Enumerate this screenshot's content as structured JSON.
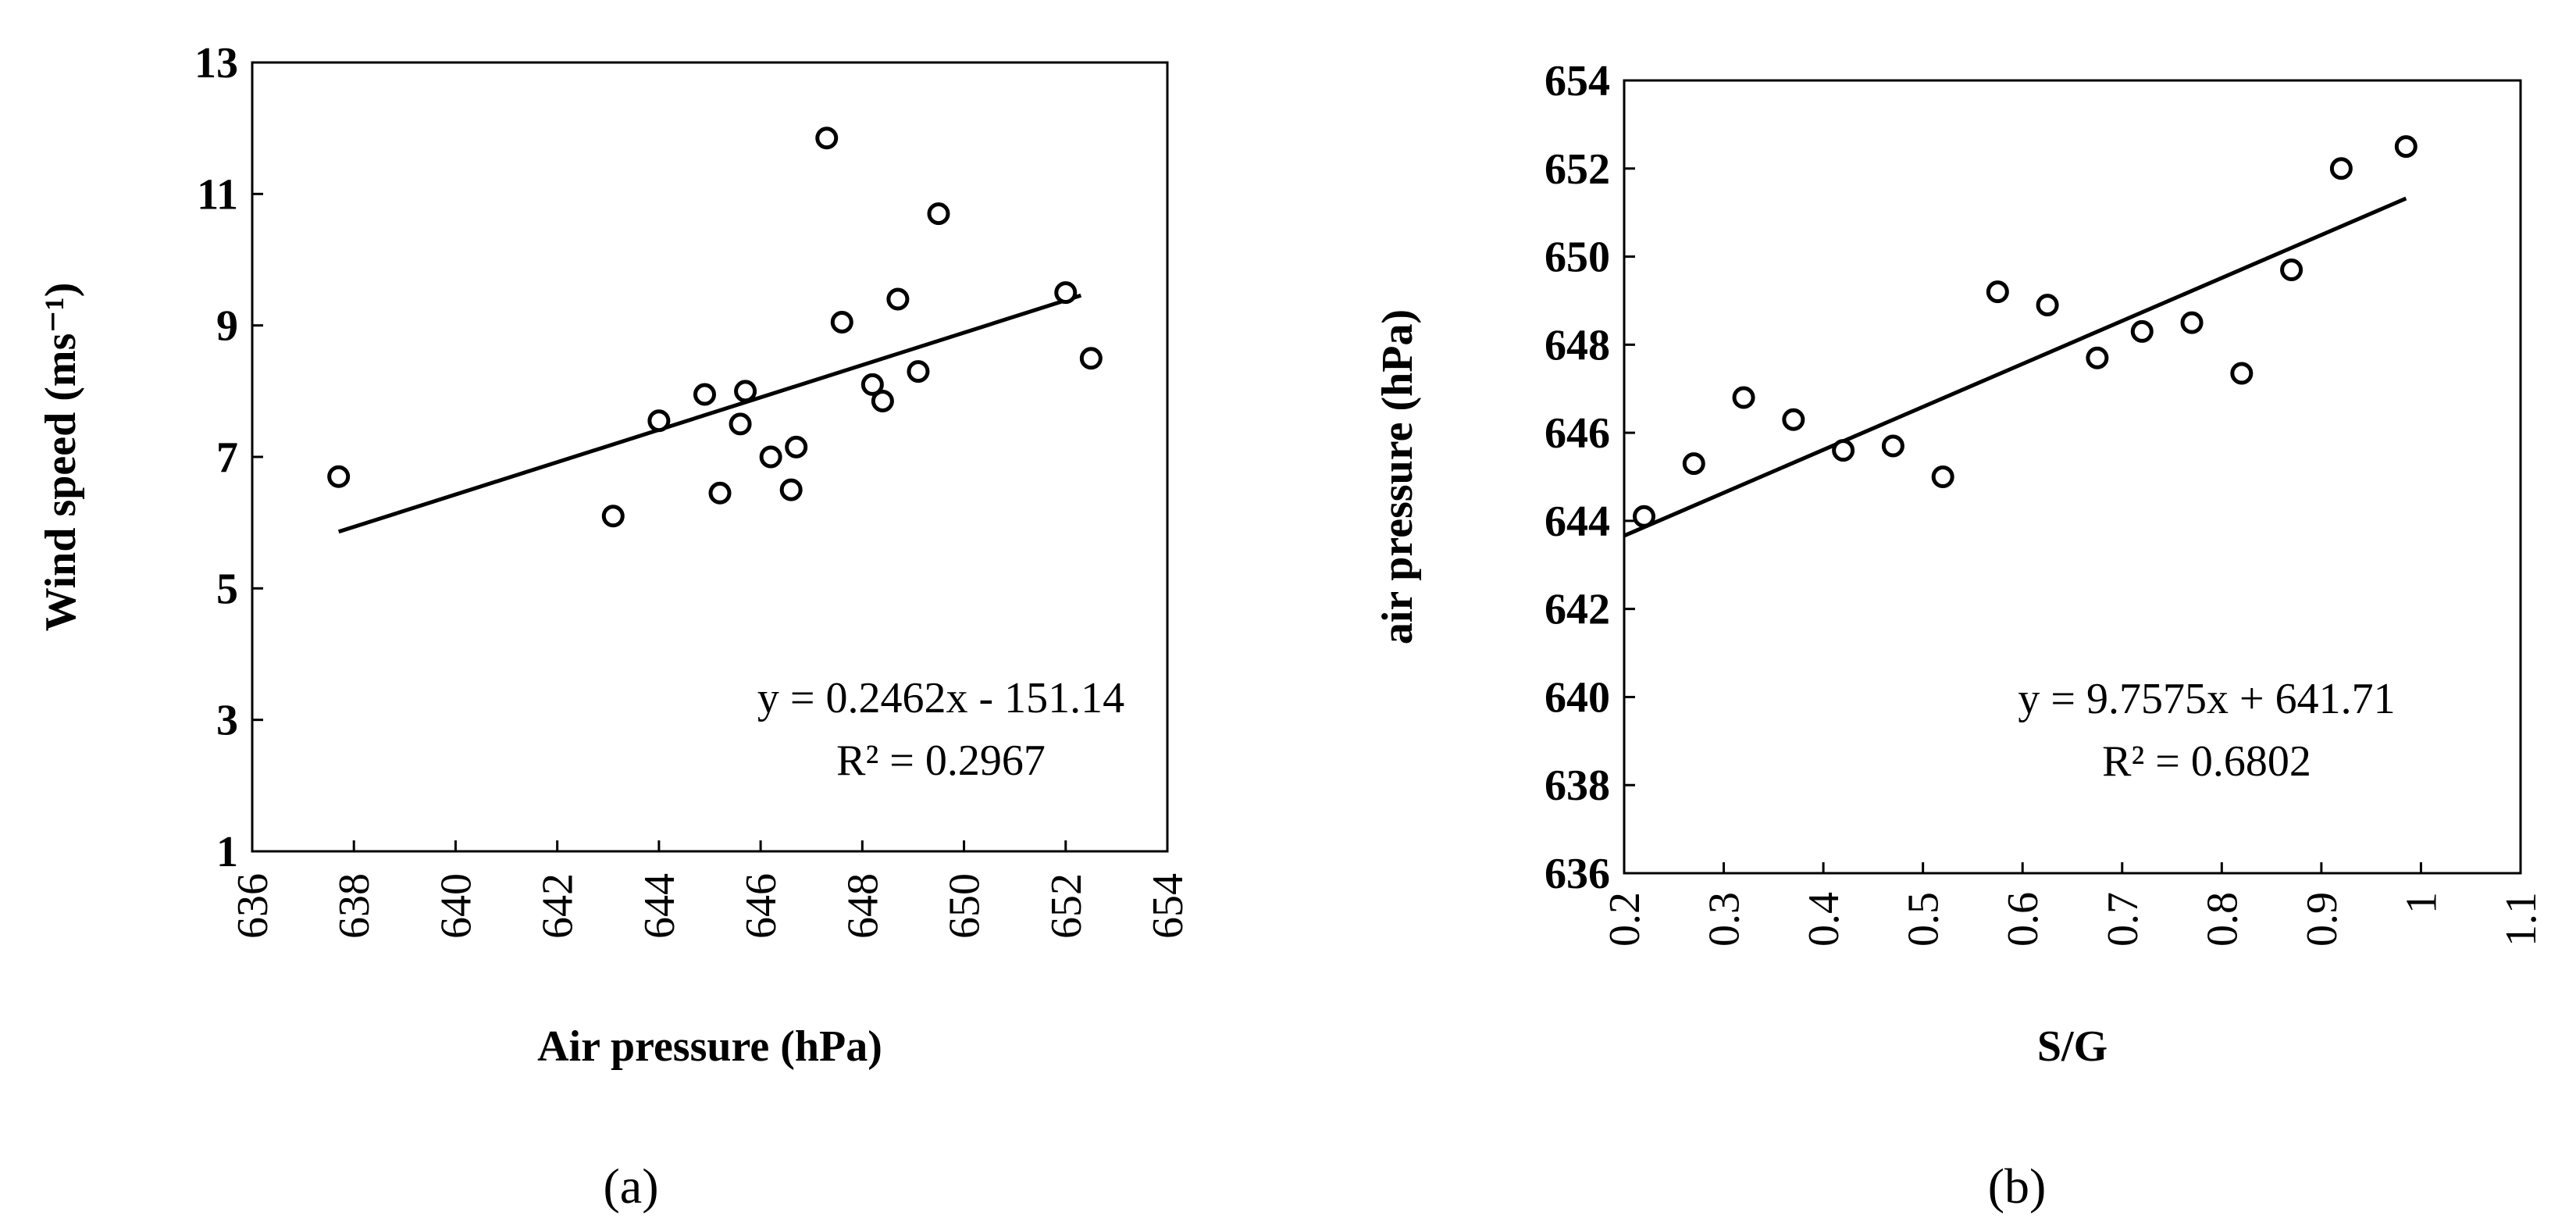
{
  "chart_data": [
    {
      "type": "scatter",
      "panel_label": "(a)",
      "xlabel": "Air pressure (hPa)",
      "ylabel": "Wind speed (ms⁻¹)",
      "xlim": [
        636,
        654
      ],
      "ylim": [
        1,
        13
      ],
      "xticks": [
        636,
        638,
        640,
        642,
        644,
        646,
        648,
        650,
        652,
        654
      ],
      "yticks": [
        1,
        3,
        5,
        7,
        9,
        11,
        13
      ],
      "xtick_labels": [
        "636",
        "638",
        "640",
        "642",
        "644",
        "646",
        "648",
        "650",
        "652",
        "654"
      ],
      "ytick_labels": [
        "1",
        "3",
        "5",
        "7",
        "9",
        "11",
        "13"
      ],
      "points": [
        [
          637.7,
          6.7
        ],
        [
          643.1,
          6.1
        ],
        [
          644.0,
          7.55
        ],
        [
          644.9,
          7.95
        ],
        [
          645.2,
          6.45
        ],
        [
          645.6,
          7.5
        ],
        [
          645.7,
          8.0
        ],
        [
          646.2,
          7.0
        ],
        [
          646.6,
          6.5
        ],
        [
          646.7,
          7.15
        ],
        [
          647.3,
          11.85
        ],
        [
          647.6,
          9.05
        ],
        [
          648.2,
          8.1
        ],
        [
          648.4,
          7.85
        ],
        [
          648.7,
          9.4
        ],
        [
          649.1,
          8.3
        ],
        [
          649.5,
          10.7
        ],
        [
          652.0,
          9.5
        ],
        [
          652.5,
          8.5
        ]
      ],
      "trendline": {
        "slope": 0.2462,
        "intercept": -151.14,
        "x_range": [
          637.7,
          652.3
        ]
      },
      "equation": "y = 0.2462x - 151.14",
      "r2": "R² = 0.2967",
      "grid": false,
      "legend": "none"
    },
    {
      "type": "scatter",
      "panel_label": "(b)",
      "xlabel": "S/G",
      "ylabel": "air pressure (hPa)",
      "xlim": [
        0.2,
        1.1
      ],
      "ylim": [
        636,
        654
      ],
      "xticks": [
        0.2,
        0.3,
        0.4,
        0.5,
        0.6,
        0.7,
        0.8,
        0.9,
        1.0,
        1.1
      ],
      "yticks": [
        636,
        638,
        640,
        642,
        644,
        646,
        648,
        650,
        652,
        654
      ],
      "xtick_labels": [
        "0.2",
        "0.3",
        "0.4",
        "0.5",
        "0.6",
        "0.7",
        "0.8",
        "0.9",
        "1",
        "1.1"
      ],
      "ytick_labels": [
        "636",
        "638",
        "640",
        "642",
        "644",
        "646",
        "648",
        "650",
        "652",
        "654"
      ],
      "points": [
        [
          0.22,
          644.1
        ],
        [
          0.27,
          645.3
        ],
        [
          0.32,
          646.8
        ],
        [
          0.37,
          646.3
        ],
        [
          0.42,
          645.6
        ],
        [
          0.47,
          645.7
        ],
        [
          0.52,
          645.0
        ],
        [
          0.575,
          649.2
        ],
        [
          0.625,
          648.9
        ],
        [
          0.675,
          647.7
        ],
        [
          0.72,
          648.3
        ],
        [
          0.77,
          648.5
        ],
        [
          0.82,
          647.35
        ],
        [
          0.87,
          649.7
        ],
        [
          0.92,
          652.0
        ],
        [
          0.985,
          652.5
        ]
      ],
      "trendline": {
        "slope": 9.7575,
        "intercept": 641.71,
        "x_range": [
          0.2,
          0.985
        ]
      },
      "equation": "y = 9.7575x + 641.71",
      "r2": "R² = 0.6802",
      "grid": false,
      "legend": "none"
    }
  ]
}
